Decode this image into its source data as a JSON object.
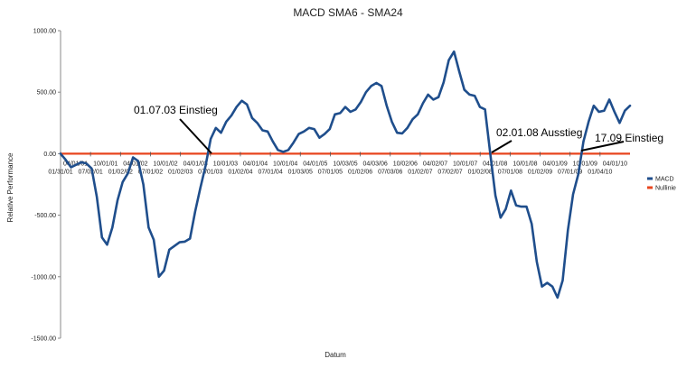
{
  "chart_data": {
    "type": "line",
    "title": "MACD SMA6 - SMA24",
    "xlabel": "Datum",
    "ylabel": "Relative Performance",
    "ylim": [
      -1500,
      1000
    ],
    "yticks": [
      1000,
      500,
      0,
      -500,
      -1000,
      -1500
    ],
    "ytick_labels": [
      "1000.00",
      "500.00",
      "0.00",
      "-500.00",
      "-1000.00",
      "-1500.00"
    ],
    "grid": false,
    "legend_position": "right",
    "x_tick_labels_upper": [
      "04/01/01",
      "10/01/01",
      "04/01/02",
      "10/01/02",
      "04/01/03",
      "10/01/03",
      "04/01/04",
      "10/01/04",
      "04/01/05",
      "10/03/05",
      "04/03/06",
      "10/02/06",
      "04/02/07",
      "10/01/07",
      "04/01/08",
      "10/01/08",
      "04/01/09",
      "10/01/09",
      "04/01/10"
    ],
    "x_tick_labels_lower": [
      "01/31/01",
      "07/02/01",
      "01/02/02",
      "07/01/02",
      "01/02/03",
      "07/01/03",
      "01/02/04",
      "07/01/04",
      "01/03/05",
      "07/01/05",
      "01/02/06",
      "07/03/06",
      "01/02/07",
      "07/02/07",
      "01/02/08",
      "07/01/08",
      "01/02/09",
      "07/01/09",
      "01/04/10"
    ],
    "series": [
      {
        "name": "MACD",
        "color": "#1f4e8c",
        "values": [
          0,
          -50,
          -110,
          -90,
          -70,
          -80,
          -120,
          -350,
          -680,
          -740,
          -600,
          -380,
          -230,
          -160,
          -30,
          -60,
          -250,
          -600,
          -700,
          -1000,
          -950,
          -780,
          -750,
          -720,
          -715,
          -690,
          -470,
          -280,
          -100,
          120,
          210,
          170,
          260,
          310,
          380,
          430,
          400,
          290,
          250,
          190,
          180,
          100,
          30,
          15,
          30,
          90,
          160,
          180,
          210,
          200,
          130,
          160,
          200,
          320,
          330,
          380,
          340,
          360,
          420,
          500,
          550,
          575,
          550,
          390,
          260,
          170,
          165,
          210,
          280,
          320,
          410,
          480,
          440,
          460,
          580,
          760,
          830,
          670,
          520,
          480,
          470,
          380,
          360,
          0,
          -340,
          -520,
          -450,
          -300,
          -420,
          -430,
          -430,
          -570,
          -880,
          -1080,
          -1050,
          -1080,
          -1170,
          -1030,
          -620,
          -330,
          -170,
          100,
          260,
          390,
          340,
          350,
          440,
          340,
          250,
          350,
          390
        ]
      },
      {
        "name": "Nullinie",
        "color": "#e8451e",
        "values": "zero"
      }
    ],
    "annotations": [
      {
        "text": "01.07.03 Einstieg",
        "x_index": 29,
        "y": 0
      },
      {
        "text": "02.01.08 Ausstieg",
        "x_index": 83,
        "y": 0
      },
      {
        "text": "17.09 Einstieg",
        "x_index": 101,
        "y": 0
      }
    ]
  }
}
